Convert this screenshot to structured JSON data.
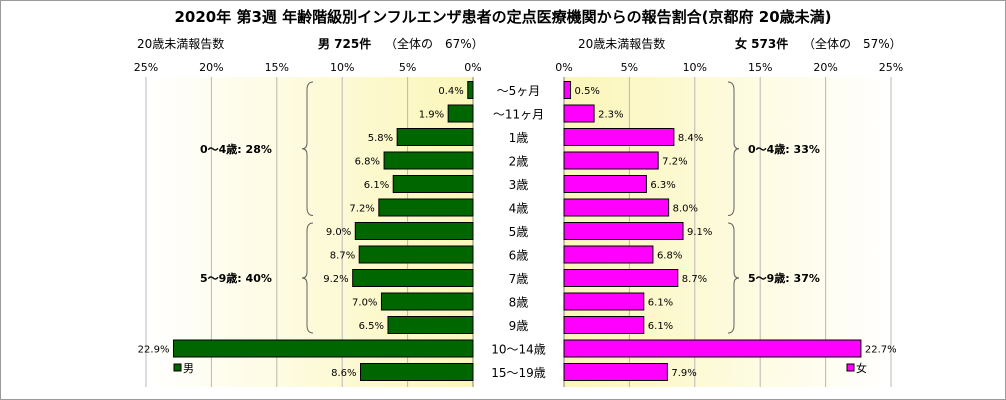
{
  "chart_data": {
    "type": "bar",
    "title": "2020年 第3週 年齢階級別インフルエンザ患者の定点医療機関からの報告割合(京都府 20歳未満)",
    "categories": [
      "～5ヶ月",
      "～11ヶ月",
      "1歳",
      "2歳",
      "3歳",
      "4歳",
      "5歳",
      "6歳",
      "7歳",
      "8歳",
      "9歳",
      "10～14歳",
      "15～19歳"
    ],
    "xlim": [
      0,
      25
    ],
    "ticks": [
      "25%",
      "20%",
      "15%",
      "10%",
      "5%",
      "0%"
    ],
    "ticks_right": [
      "0%",
      "5%",
      "10%",
      "15%",
      "20%",
      "25%"
    ],
    "grid": true,
    "series": [
      {
        "name": "男",
        "side": "left",
        "color": "#006600",
        "header_label": "20歳未満報告数",
        "header_count": "男 725件",
        "header_share": "（全体の　67%）",
        "values": [
          0.4,
          1.9,
          5.8,
          6.8,
          6.1,
          7.2,
          9.0,
          8.7,
          9.2,
          7.0,
          6.5,
          22.9,
          8.6
        ],
        "labels": [
          "0.4%",
          "1.9%",
          "5.8%",
          "6.8%",
          "6.1%",
          "7.2%",
          "9.0%",
          "8.7%",
          "9.2%",
          "7.0%",
          "6.5%",
          "22.9%",
          "8.6%"
        ],
        "group_notes": [
          "0～4歳: 28%",
          "5～9歳: 40%"
        ]
      },
      {
        "name": "女",
        "side": "right",
        "color": "#ff00ff",
        "header_label": "20歳未満報告数",
        "header_count": "女 573件",
        "header_share": "（全体の　57%）",
        "values": [
          0.5,
          2.3,
          8.4,
          7.2,
          6.3,
          8.0,
          9.1,
          6.8,
          8.7,
          6.1,
          6.1,
          22.7,
          7.9
        ],
        "labels": [
          "0.5%",
          "2.3%",
          "8.4%",
          "7.2%",
          "6.3%",
          "8.0%",
          "9.1%",
          "6.8%",
          "8.7%",
          "6.1%",
          "6.1%",
          "22.7%",
          "7.9%"
        ],
        "group_notes": [
          "0～4歳: 33%",
          "5～9歳: 37%"
        ]
      }
    ]
  }
}
